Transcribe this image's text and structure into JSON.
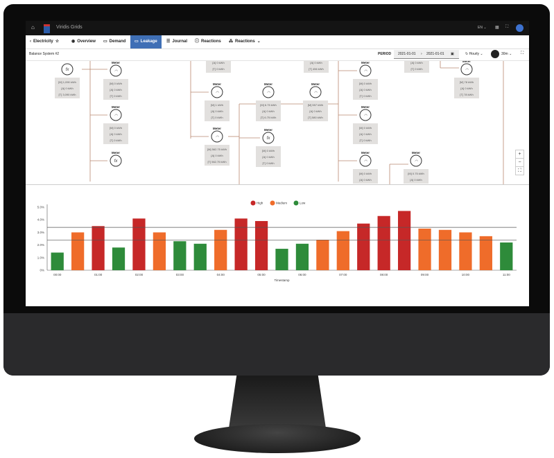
{
  "app": {
    "title": "Viridis Grids",
    "language": "EN",
    "icons": [
      "home-icon",
      "app-logo",
      "grid-icon",
      "fullscreen-icon",
      "avatar"
    ]
  },
  "nav": {
    "back_label": "Electricity",
    "tabs": [
      {
        "label": "Overview",
        "icon": "globe-icon"
      },
      {
        "label": "Demand",
        "icon": "demand-icon"
      },
      {
        "label": "Leakage",
        "icon": "leakage-icon",
        "active": true
      },
      {
        "label": "Journal",
        "icon": "database-icon"
      },
      {
        "label": "Reactions",
        "icon": "alert-icon"
      },
      {
        "label": "Reactions",
        "icon": "hierarchy-icon",
        "dropdown": true
      }
    ]
  },
  "subheader": {
    "title": "Balance System #2",
    "period_label": "PERIOD",
    "date_from": "2021-01-01",
    "date_to": "2021-01-01",
    "interval": "Hourly",
    "refresh": "30m"
  },
  "diagram": {
    "nodes": [
      {
        "label": "",
        "type": "fx",
        "values": [
          "[M] 1,090 kWh",
          "[A] 0 kWh",
          "[T] 3,090 kWh"
        ]
      },
      {
        "label": "Meter",
        "type": "meter",
        "values": [
          "[M] 0 kWh",
          "[A] 0 kWh",
          "[T] 0 kWh"
        ]
      },
      {
        "label": "Meter",
        "type": "meter",
        "values": [
          "[M] 0 kWh",
          "[A] 0 kWh",
          "[T] 0 kWh"
        ]
      },
      {
        "label": "Meter",
        "type": "fx",
        "values": []
      },
      {
        "label": "",
        "type": "partial",
        "values": [
          "[A] 0 kWh",
          "[T] 0 kWh"
        ]
      },
      {
        "label": "Meter",
        "type": "meter",
        "values": [
          "[M] 1 kWh",
          "[A] 0 kWh",
          "[T] 0 kWh"
        ]
      },
      {
        "label": "Meter",
        "type": "meter-gear",
        "values": [
          "[M] 562.75 kWh",
          "[A] 0 kWh",
          "[T] 562.75 kWh"
        ]
      },
      {
        "label": "Meter",
        "type": "meter",
        "values": [
          "[M] 6.75 kWh",
          "[A] 0 kWh",
          "[T] 6.75 kWh"
        ]
      },
      {
        "label": "Meter",
        "type": "fx",
        "values": [
          "[M] 0 kWh",
          "[A] 0 kWh",
          "[T] 0 kWh"
        ]
      },
      {
        "label": "",
        "type": "partial",
        "values": [
          "[A] 0 kWh",
          "[T] 456 kWh"
        ]
      },
      {
        "label": "Meter",
        "type": "meter-gear",
        "values": [
          "[M] 557 kWh",
          "[A] 0 kWh",
          "[T] 580 kWh"
        ]
      },
      {
        "label": "Meter",
        "type": "meter",
        "values": [
          "[M] 0 kWh",
          "[A] 0 kWh",
          "[T] 0 kWh"
        ]
      },
      {
        "label": "Meter",
        "type": "meter",
        "values": [
          "[M] 0 kWh",
          "[A] 0 kWh",
          "[T] 0 kWh"
        ]
      },
      {
        "label": "Meter",
        "type": "meter",
        "values": [
          "[M] 0 kWh",
          "[A] 0 kWh"
        ]
      },
      {
        "label": "Meter",
        "type": "meter",
        "values": [
          "[M] 0.75 kWh",
          "[A] 0 kWh"
        ]
      },
      {
        "label": "",
        "type": "partial",
        "values": [
          "[A] 0 kWh",
          "[T] 0 kWh"
        ]
      },
      {
        "label": "Meter",
        "type": "meter",
        "values": [
          "[M] 78 kWh",
          "[A] 0 kWh",
          "[T] 78 kWh"
        ]
      }
    ],
    "zoom_controls": [
      "+",
      "−",
      "⛶"
    ]
  },
  "chart_data": {
    "type": "bar",
    "xlabel": "Timestamp",
    "ylabel": "",
    "ylim": [
      0,
      5
    ],
    "yticks": [
      "0%",
      "1.0%",
      "2.0%",
      "3.0%",
      "4.0%",
      "5.0%"
    ],
    "categories": [
      "00:00",
      "00:30",
      "01:00",
      "01:30",
      "02:00",
      "02:30",
      "03:00",
      "03:30",
      "04:00",
      "04:30",
      "05:00",
      "05:30",
      "06:00",
      "06:30",
      "07:00",
      "07:30",
      "08:00",
      "08:30",
      "09:00",
      "09:30",
      "10:00",
      "10:30",
      "11:00"
    ],
    "xtick_labels": [
      "00:00",
      "01:00",
      "02:00",
      "03:00",
      "04:00",
      "05:00",
      "06:00",
      "07:00",
      "08:00",
      "09:00",
      "10:00",
      "11:00"
    ],
    "values": [
      1.4,
      3.0,
      3.5,
      1.8,
      4.1,
      3.0,
      2.3,
      2.1,
      3.2,
      4.1,
      3.9,
      1.7,
      2.1,
      2.4,
      3.1,
      3.7,
      4.3,
      4.7,
      3.3,
      3.2,
      3.0,
      2.7,
      2.2
    ],
    "levels": [
      "low",
      "medium",
      "high",
      "low",
      "high",
      "medium",
      "low",
      "low",
      "medium",
      "high",
      "high",
      "low",
      "low",
      "medium",
      "medium",
      "high",
      "high",
      "high",
      "medium",
      "medium",
      "medium",
      "medium",
      "low"
    ],
    "thresholds": [
      2.4,
      3.4
    ],
    "legend": [
      {
        "name": "High",
        "color": "#c62828"
      },
      {
        "name": "Medium",
        "color": "#ef6c2a"
      },
      {
        "name": "Low",
        "color": "#2e8b3a"
      }
    ],
    "legend_position": "top-center",
    "grid": false
  }
}
